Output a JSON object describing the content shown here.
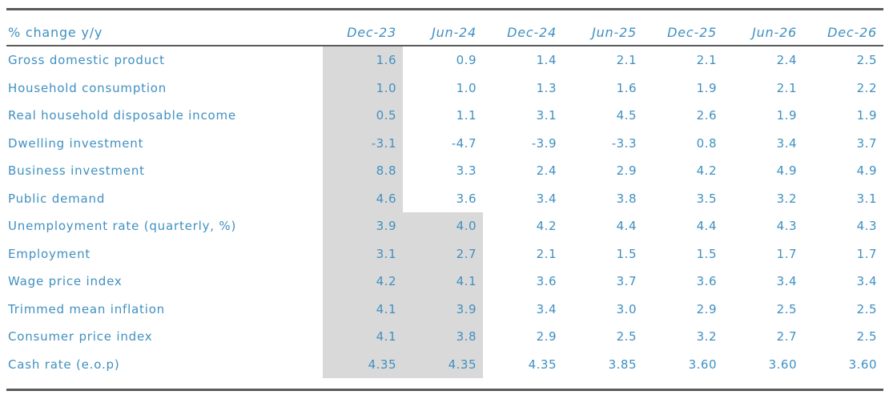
{
  "table": {
    "corner_label": "% change y/y",
    "columns": [
      "Dec-23",
      "Jun-24",
      "Dec-24",
      "Jun-25",
      "Dec-25",
      "Jun-26",
      "Dec-26"
    ],
    "rows": [
      {
        "label": "Gross domestic product",
        "values": [
          "1.6",
          "0.9",
          "1.4",
          "2.1",
          "2.1",
          "2.4",
          "2.5"
        ],
        "shaded_count": 1
      },
      {
        "label": "Household consumption",
        "values": [
          "1.0",
          "1.0",
          "1.3",
          "1.6",
          "1.9",
          "2.1",
          "2.2"
        ],
        "shaded_count": 1
      },
      {
        "label": "Real household disposable income",
        "values": [
          "0.5",
          "1.1",
          "3.1",
          "4.5",
          "2.6",
          "1.9",
          "1.9"
        ],
        "shaded_count": 1
      },
      {
        "label": "Dwelling investment",
        "values": [
          "-3.1",
          "-4.7",
          "-3.9",
          "-3.3",
          "0.8",
          "3.4",
          "3.7"
        ],
        "shaded_count": 1
      },
      {
        "label": "Business investment",
        "values": [
          "8.8",
          "3.3",
          "2.4",
          "2.9",
          "4.2",
          "4.9",
          "4.9"
        ],
        "shaded_count": 1
      },
      {
        "label": "Public demand",
        "values": [
          "4.6",
          "3.6",
          "3.4",
          "3.8",
          "3.5",
          "3.2",
          "3.1"
        ],
        "shaded_count": 1
      },
      {
        "label": "Unemployment rate (quarterly, %)",
        "values": [
          "3.9",
          "4.0",
          "4.2",
          "4.4",
          "4.4",
          "4.3",
          "4.3"
        ],
        "shaded_count": 2
      },
      {
        "label": "Employment",
        "values": [
          "3.1",
          "2.7",
          "2.1",
          "1.5",
          "1.5",
          "1.7",
          "1.7"
        ],
        "shaded_count": 2
      },
      {
        "label": "Wage price index",
        "values": [
          "4.2",
          "4.1",
          "3.6",
          "3.7",
          "3.6",
          "3.4",
          "3.4"
        ],
        "shaded_count": 2
      },
      {
        "label": "Trimmed mean inflation",
        "values": [
          "4.1",
          "3.9",
          "3.4",
          "3.0",
          "2.9",
          "2.5",
          "2.5"
        ],
        "shaded_count": 2
      },
      {
        "label": "Consumer price index",
        "values": [
          "4.1",
          "3.8",
          "2.9",
          "2.5",
          "3.2",
          "2.7",
          "2.5"
        ],
        "shaded_count": 2
      },
      {
        "label": "Cash rate (e.o.p)",
        "values": [
          "4.35",
          "4.35",
          "4.35",
          "3.85",
          "3.60",
          "3.60",
          "3.60"
        ],
        "shaded_count": 2
      }
    ],
    "shading_meaning": "gray shaded cells mark historical/actual periods"
  },
  "chart_data": {
    "type": "table",
    "title": "% change y/y",
    "categories": [
      "Dec-23",
      "Jun-24",
      "Dec-24",
      "Jun-25",
      "Dec-25",
      "Jun-26",
      "Dec-26"
    ],
    "series": [
      {
        "name": "Gross domestic product",
        "values": [
          1.6,
          0.9,
          1.4,
          2.1,
          2.1,
          2.4,
          2.5
        ]
      },
      {
        "name": "Household consumption",
        "values": [
          1.0,
          1.0,
          1.3,
          1.6,
          1.9,
          2.1,
          2.2
        ]
      },
      {
        "name": "Real household disposable income",
        "values": [
          0.5,
          1.1,
          3.1,
          4.5,
          2.6,
          1.9,
          1.9
        ]
      },
      {
        "name": "Dwelling investment",
        "values": [
          -3.1,
          -4.7,
          -3.9,
          -3.3,
          0.8,
          3.4,
          3.7
        ]
      },
      {
        "name": "Business investment",
        "values": [
          8.8,
          3.3,
          2.4,
          2.9,
          4.2,
          4.9,
          4.9
        ]
      },
      {
        "name": "Public demand",
        "values": [
          4.6,
          3.6,
          3.4,
          3.8,
          3.5,
          3.2,
          3.1
        ]
      },
      {
        "name": "Unemployment rate (quarterly, %)",
        "values": [
          3.9,
          4.0,
          4.2,
          4.4,
          4.4,
          4.3,
          4.3
        ]
      },
      {
        "name": "Employment",
        "values": [
          3.1,
          2.7,
          2.1,
          1.5,
          1.5,
          1.7,
          1.7
        ]
      },
      {
        "name": "Wage price index",
        "values": [
          4.2,
          4.1,
          3.6,
          3.7,
          3.6,
          3.4,
          3.4
        ]
      },
      {
        "name": "Trimmed mean inflation",
        "values": [
          4.1,
          3.9,
          3.4,
          3.0,
          2.9,
          2.5,
          2.5
        ]
      },
      {
        "name": "Consumer price index",
        "values": [
          4.1,
          3.8,
          2.9,
          2.5,
          3.2,
          2.7,
          2.5
        ]
      },
      {
        "name": "Cash rate (e.o.p)",
        "values": [
          4.35,
          4.35,
          4.35,
          3.85,
          3.6,
          3.6,
          3.6
        ]
      }
    ]
  },
  "colors": {
    "text": "#4090c0",
    "rule": "#5a5a5a",
    "shaded_cell_background": "#d9d9d9",
    "background": "#ffffff"
  }
}
